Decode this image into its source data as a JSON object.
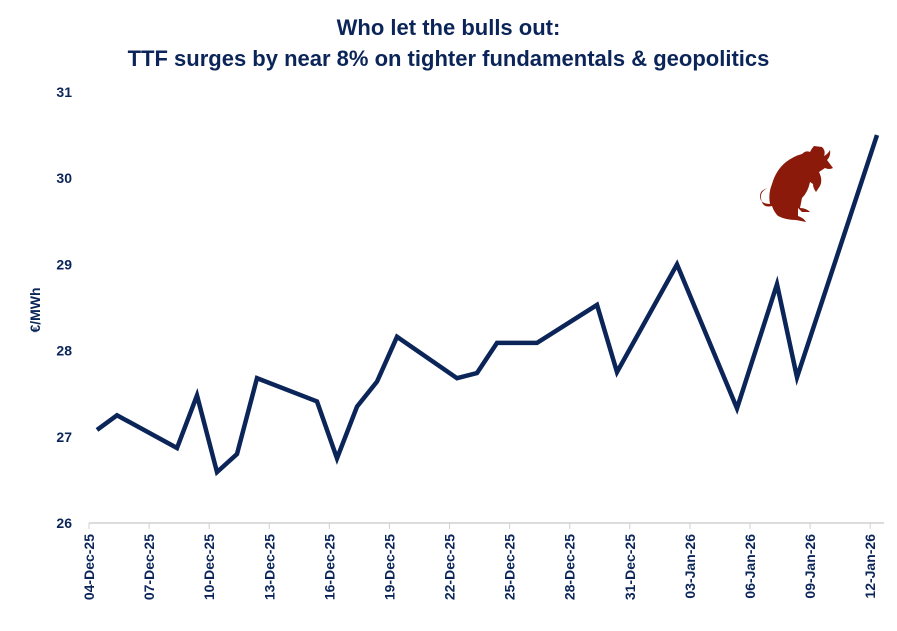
{
  "chart_data": {
    "type": "line",
    "title": [
      "Who let the bulls out:",
      "TTF surges by near 8% on tighter fundamentals & geopolitics"
    ],
    "xlabel": "",
    "ylabel": "€/MWh",
    "ylim": [
      26,
      31
    ],
    "yticks": [
      "26",
      "27",
      "28",
      "29",
      "30",
      "31"
    ],
    "xticks": [
      "04-Dec-25",
      "07-Dec-25",
      "10-Dec-25",
      "13-Dec-25",
      "16-Dec-25",
      "19-Dec-25",
      "22-Dec-25",
      "25-Dec-25",
      "28-Dec-25",
      "31-Dec-25",
      "03-Jan-26",
      "06-Jan-26",
      "09-Jan-26",
      "12-Jan-26"
    ],
    "grid": false,
    "line_color": "#0b2559",
    "series": [
      {
        "x": [
          "2025-12-04",
          "2025-12-05",
          "2025-12-08",
          "2025-12-09",
          "2025-12-10",
          "2025-12-11",
          "2025-12-12",
          "2025-12-15",
          "2025-12-16",
          "2025-12-17",
          "2025-12-18",
          "2025-12-19",
          "2025-12-22",
          "2025-12-23",
          "2025-12-24",
          "2025-12-26",
          "2025-12-29",
          "2025-12-30",
          "2026-01-02",
          "2026-01-05",
          "2026-01-07",
          "2026-01-08",
          "2026-01-12"
        ],
        "values": [
          27.08,
          27.25,
          26.87,
          27.48,
          26.59,
          26.8,
          27.68,
          27.41,
          26.75,
          27.35,
          27.64,
          28.16,
          27.68,
          27.74,
          28.09,
          28.09,
          28.53,
          27.75,
          29.0,
          27.33,
          28.77,
          27.69,
          30.5
        ]
      }
    ],
    "annotation_icon": "bull-icon",
    "annotation_color": "#8b1a0a"
  }
}
